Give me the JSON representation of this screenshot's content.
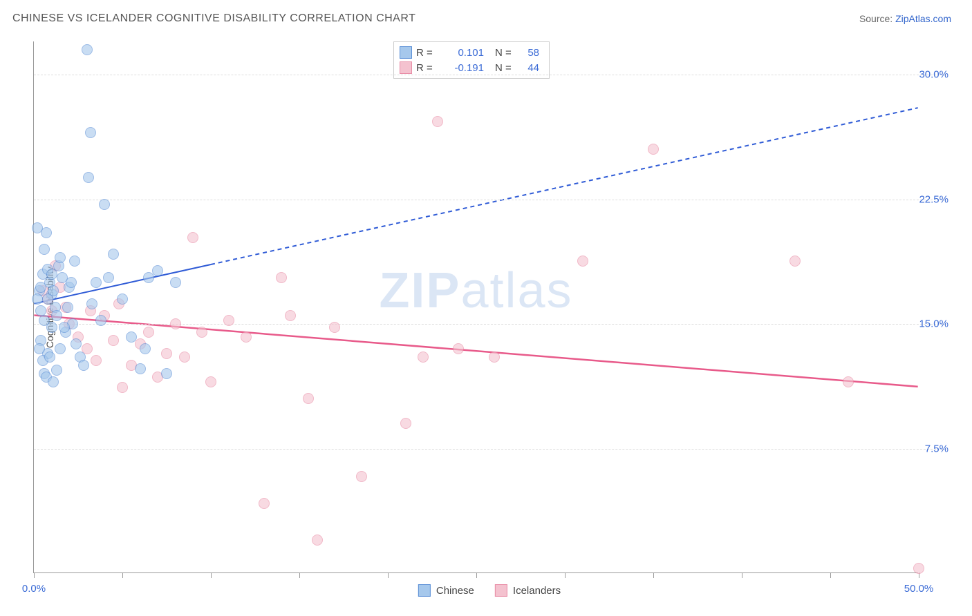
{
  "header": {
    "title": "CHINESE VS ICELANDER COGNITIVE DISABILITY CORRELATION CHART",
    "source_label": "Source: ",
    "source_link": "ZipAtlas.com"
  },
  "chart": {
    "type": "scatter",
    "ylabel": "Cognitive Disability",
    "watermark": "ZIPatlas",
    "xlim": [
      0,
      50
    ],
    "ylim": [
      0,
      32
    ],
    "xtick_positions": [
      0,
      5,
      10,
      15,
      20,
      25,
      30,
      35,
      40,
      45,
      50
    ],
    "ytick_positions": [
      7.5,
      15.0,
      22.5,
      30.0
    ],
    "ytick_labels": [
      "7.5%",
      "15.0%",
      "22.5%",
      "30.0%"
    ],
    "xtick_label_left": "0.0%",
    "xtick_label_right": "50.0%",
    "background_color": "#ffffff",
    "grid_color": "#dddddd",
    "axis_color": "#999999",
    "tick_label_color": "#3b6bd6",
    "series": {
      "chinese": {
        "label": "Chinese",
        "fill": "#a6c8ec",
        "stroke": "#5b8fd6",
        "marker_radius": 8,
        "R": "0.101",
        "N": "58",
        "trend": {
          "x1": 0,
          "y1": 16.2,
          "x2": 50,
          "y2": 28.0,
          "solid_until_x": 10,
          "color": "#2f5bd6",
          "width": 2
        },
        "points": [
          [
            0.3,
            17.0
          ],
          [
            0.4,
            17.2
          ],
          [
            0.5,
            18.0
          ],
          [
            0.6,
            19.5
          ],
          [
            0.7,
            20.5
          ],
          [
            0.8,
            18.3
          ],
          [
            0.9,
            17.5
          ],
          [
            1.0,
            16.8
          ],
          [
            1.1,
            17.0
          ],
          [
            1.2,
            16.0
          ],
          [
            1.3,
            15.5
          ],
          [
            1.4,
            18.5
          ],
          [
            1.5,
            19.0
          ],
          [
            1.6,
            17.8
          ],
          [
            1.8,
            14.5
          ],
          [
            2.0,
            17.2
          ],
          [
            2.2,
            15.0
          ],
          [
            2.4,
            13.8
          ],
          [
            2.6,
            13.0
          ],
          [
            2.8,
            12.5
          ],
          [
            3.0,
            31.5
          ],
          [
            3.2,
            26.5
          ],
          [
            0.2,
            20.8
          ],
          [
            0.4,
            14.0
          ],
          [
            0.6,
            12.0
          ],
          [
            0.8,
            13.2
          ],
          [
            1.0,
            14.8
          ],
          [
            3.1,
            23.8
          ],
          [
            3.3,
            16.2
          ],
          [
            3.5,
            17.5
          ],
          [
            3.8,
            15.2
          ],
          [
            4.0,
            22.2
          ],
          [
            4.2,
            17.8
          ],
          [
            4.5,
            19.2
          ],
          [
            5.0,
            16.5
          ],
          [
            5.5,
            14.2
          ],
          [
            6.0,
            12.3
          ],
          [
            6.3,
            13.5
          ],
          [
            6.5,
            17.8
          ],
          [
            7.0,
            18.2
          ],
          [
            7.5,
            12.0
          ],
          [
            8.0,
            17.5
          ],
          [
            0.3,
            13.5
          ],
          [
            0.5,
            12.8
          ],
          [
            0.7,
            11.8
          ],
          [
            0.9,
            13.0
          ],
          [
            1.1,
            11.5
          ],
          [
            1.3,
            12.2
          ],
          [
            1.5,
            13.5
          ],
          [
            1.7,
            14.8
          ],
          [
            1.9,
            16.0
          ],
          [
            2.1,
            17.5
          ],
          [
            2.3,
            18.8
          ],
          [
            0.2,
            16.5
          ],
          [
            0.4,
            15.8
          ],
          [
            0.6,
            15.2
          ],
          [
            0.8,
            16.5
          ],
          [
            1.0,
            18.0
          ]
        ]
      },
      "icelanders": {
        "label": "Icelanders",
        "fill": "#f4c2cf",
        "stroke": "#e88ba5",
        "marker_radius": 8,
        "R": "-0.191",
        "N": "44",
        "trend": {
          "x1": 0,
          "y1": 15.5,
          "x2": 50,
          "y2": 11.2,
          "solid_until_x": 50,
          "color": "#e85a8a",
          "width": 2.5
        },
        "points": [
          [
            0.5,
            17.0
          ],
          [
            0.8,
            16.5
          ],
          [
            1.0,
            15.8
          ],
          [
            1.2,
            18.5
          ],
          [
            1.5,
            17.2
          ],
          [
            1.8,
            16.0
          ],
          [
            2.0,
            15.0
          ],
          [
            2.5,
            14.2
          ],
          [
            3.0,
            13.5
          ],
          [
            3.5,
            12.8
          ],
          [
            4.0,
            15.5
          ],
          [
            4.5,
            14.0
          ],
          [
            5.0,
            11.2
          ],
          [
            5.5,
            12.5
          ],
          [
            6.0,
            13.8
          ],
          [
            6.5,
            14.5
          ],
          [
            7.0,
            11.8
          ],
          [
            8.0,
            15.0
          ],
          [
            8.5,
            13.0
          ],
          [
            9.0,
            20.2
          ],
          [
            9.5,
            14.5
          ],
          [
            10.0,
            11.5
          ],
          [
            11.0,
            15.2
          ],
          [
            12.0,
            14.2
          ],
          [
            13.0,
            4.2
          ],
          [
            14.0,
            17.8
          ],
          [
            14.5,
            15.5
          ],
          [
            15.5,
            10.5
          ],
          [
            16.0,
            2.0
          ],
          [
            17.0,
            14.8
          ],
          [
            18.5,
            5.8
          ],
          [
            21.0,
            9.0
          ],
          [
            22.0,
            13.0
          ],
          [
            22.8,
            27.2
          ],
          [
            24.0,
            13.5
          ],
          [
            26.0,
            13.0
          ],
          [
            31.0,
            18.8
          ],
          [
            35.0,
            25.5
          ],
          [
            43.0,
            18.8
          ],
          [
            46.0,
            11.5
          ],
          [
            50.0,
            0.3
          ],
          [
            7.5,
            13.2
          ],
          [
            3.2,
            15.8
          ],
          [
            4.8,
            16.2
          ]
        ]
      }
    },
    "stats_labels": {
      "R": "R =",
      "N": "N ="
    }
  }
}
